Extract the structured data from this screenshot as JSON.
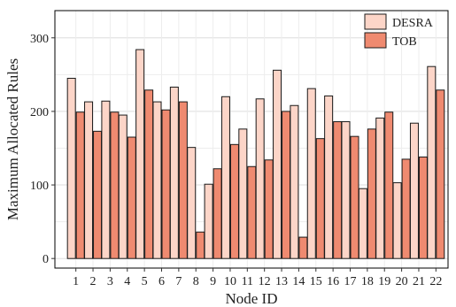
{
  "chart_data": {
    "type": "bar",
    "xlabel": "Node ID",
    "ylabel": "Maximum Allocated Rules",
    "categories": [
      "1",
      "2",
      "3",
      "4",
      "5",
      "6",
      "7",
      "8",
      "9",
      "10",
      "11",
      "12",
      "13",
      "14",
      "15",
      "16",
      "17",
      "18",
      "19",
      "20",
      "21",
      "22"
    ],
    "series": [
      {
        "name": "DESRA",
        "color": "#fcd5c8",
        "values": [
          245,
          213,
          214,
          195,
          284,
          213,
          233,
          151,
          101,
          220,
          176,
          217,
          256,
          208,
          231,
          221,
          186,
          95,
          191,
          103,
          184,
          261
        ]
      },
      {
        "name": "TOB",
        "color": "#ef8a70",
        "values": [
          199,
          173,
          199,
          165,
          229,
          202,
          213,
          36,
          122,
          155,
          125,
          134,
          200,
          29,
          163,
          186,
          166,
          176,
          199,
          135,
          138,
          229
        ]
      }
    ],
    "ylim": [
      -13,
      337
    ],
    "yticks": [
      0,
      100,
      200,
      300
    ],
    "grid": true,
    "legend_position": "top-right"
  }
}
